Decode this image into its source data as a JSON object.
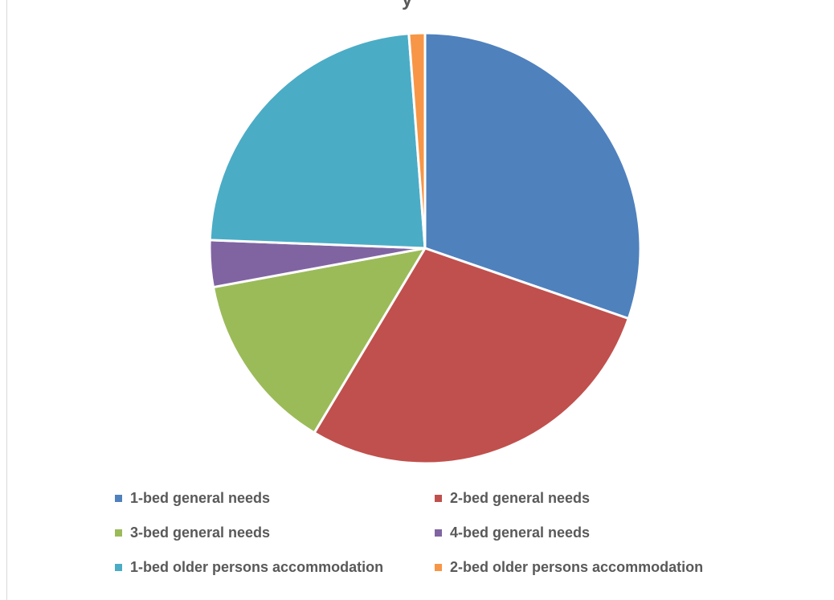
{
  "chart_data": {
    "type": "pie",
    "title_fragment": "y",
    "categories": [
      "1-bed general needs",
      "2-bed general needs",
      "3-bed general needs",
      "4-bed general needs",
      "1-bed older persons accommodation",
      "2-bed older persons accommodation"
    ],
    "values": [
      30.3,
      28.3,
      13.5,
      3.5,
      23.2,
      1.2
    ],
    "colors": [
      "#4f81bd",
      "#c0504d",
      "#9bbb59",
      "#8064a2",
      "#4bacc6",
      "#f79646"
    ],
    "legend_position": "bottom"
  }
}
